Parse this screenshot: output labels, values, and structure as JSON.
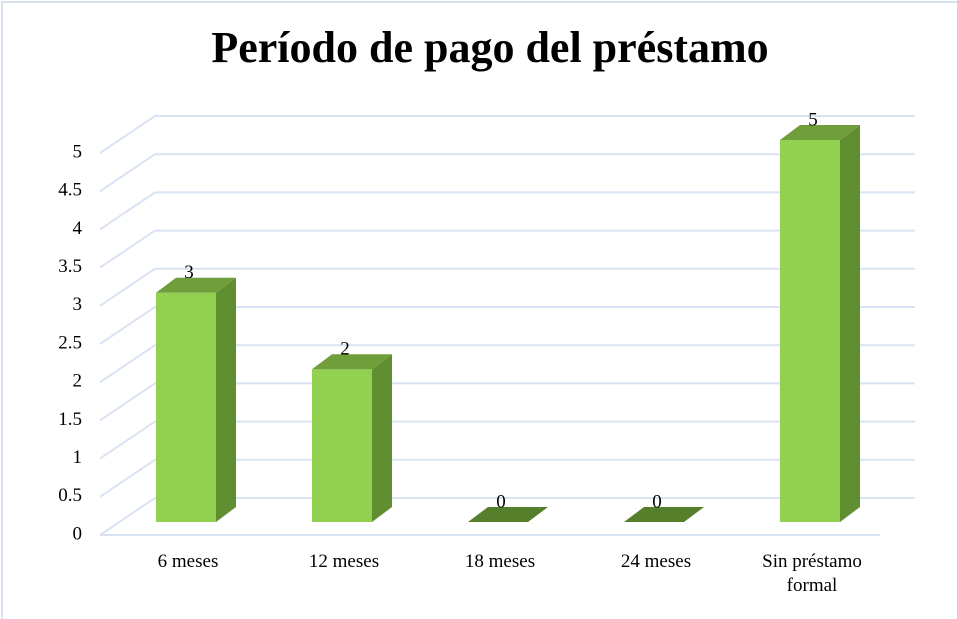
{
  "chart_data": {
    "type": "bar",
    "title": "Período de pago del préstamo",
    "categories": [
      "6 meses",
      "12 meses",
      "18 meses",
      "24 meses",
      "Sin préstamo formal"
    ],
    "values": [
      3,
      2,
      0,
      0,
      5
    ],
    "color": "#92d050",
    "ylim": [
      0,
      5
    ],
    "yticks": [
      0,
      0.5,
      1,
      1.5,
      2,
      2.5,
      3,
      3.5,
      4,
      4.5,
      5
    ],
    "grid": true
  }
}
